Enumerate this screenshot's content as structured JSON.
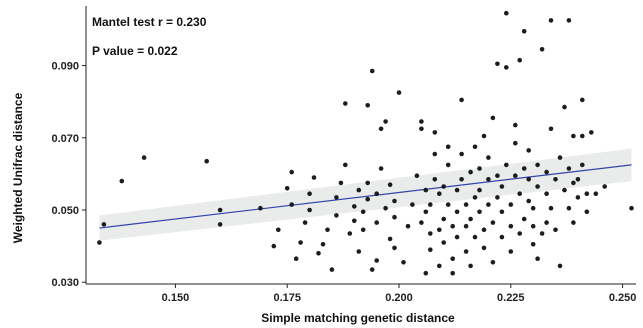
{
  "chart_data": {
    "type": "scatter",
    "xlabel": "Simple matching genetic distance",
    "ylabel": "Weighted Unifrac distance",
    "xlim": [
      0.13,
      0.253
    ],
    "ylim": [
      0.0295,
      0.1065
    ],
    "x_ticks": [
      0.15,
      0.175,
      0.2,
      0.225,
      0.25
    ],
    "x_tick_labels": [
      "0.150",
      "0.175",
      "0.200",
      "0.225",
      "0.250"
    ],
    "y_ticks": [
      0.03,
      0.05,
      0.07,
      0.09
    ],
    "y_tick_labels": [
      "0.030",
      "0.050",
      "0.070",
      "0.090"
    ],
    "grid": false,
    "annotations": [
      "Mantel test r = 0.230",
      "P value = 0.022"
    ],
    "regression": {
      "x": [
        0.133,
        0.252
      ],
      "y": [
        0.045,
        0.0625
      ],
      "ci_lower": [
        0.0415,
        0.058
      ],
      "ci_upper": [
        0.0485,
        0.067
      ],
      "line_color": "#3344aa",
      "band_color": "#e9ecea"
    },
    "point_color": "#111111",
    "points": [
      [
        0.133,
        0.041
      ],
      [
        0.134,
        0.046
      ],
      [
        0.138,
        0.058
      ],
      [
        0.143,
        0.0645
      ],
      [
        0.157,
        0.0635
      ],
      [
        0.16,
        0.046
      ],
      [
        0.16,
        0.05
      ],
      [
        0.169,
        0.0505
      ],
      [
        0.172,
        0.04
      ],
      [
        0.173,
        0.0445
      ],
      [
        0.175,
        0.056
      ],
      [
        0.176,
        0.0515
      ],
      [
        0.176,
        0.0605
      ],
      [
        0.177,
        0.0365
      ],
      [
        0.178,
        0.041
      ],
      [
        0.179,
        0.0465
      ],
      [
        0.18,
        0.05
      ],
      [
        0.18,
        0.0545
      ],
      [
        0.181,
        0.059
      ],
      [
        0.182,
        0.038
      ],
      [
        0.183,
        0.0405
      ],
      [
        0.184,
        0.0445
      ],
      [
        0.185,
        0.0335
      ],
      [
        0.186,
        0.0485
      ],
      [
        0.186,
        0.0535
      ],
      [
        0.187,
        0.0575
      ],
      [
        0.188,
        0.0625
      ],
      [
        0.188,
        0.0795
      ],
      [
        0.189,
        0.0435
      ],
      [
        0.19,
        0.047
      ],
      [
        0.19,
        0.051
      ],
      [
        0.191,
        0.0555
      ],
      [
        0.191,
        0.0385
      ],
      [
        0.192,
        0.0445
      ],
      [
        0.192,
        0.0495
      ],
      [
        0.193,
        0.053
      ],
      [
        0.193,
        0.0575
      ],
      [
        0.193,
        0.079
      ],
      [
        0.194,
        0.0885
      ],
      [
        0.194,
        0.0335
      ],
      [
        0.195,
        0.036
      ],
      [
        0.195,
        0.0465
      ],
      [
        0.195,
        0.0545
      ],
      [
        0.196,
        0.0615
      ],
      [
        0.196,
        0.0725
      ],
      [
        0.197,
        0.0745
      ],
      [
        0.197,
        0.0505
      ],
      [
        0.198,
        0.042
      ],
      [
        0.198,
        0.057
      ],
      [
        0.199,
        0.0395
      ],
      [
        0.199,
        0.048
      ],
      [
        0.199,
        0.0525
      ],
      [
        0.2,
        0.0825
      ],
      [
        0.201,
        0.0355
      ],
      [
        0.202,
        0.0455
      ],
      [
        0.203,
        0.0515
      ],
      [
        0.204,
        0.0595
      ],
      [
        0.205,
        0.0745
      ],
      [
        0.205,
        0.0725
      ],
      [
        0.205,
        0.0465
      ],
      [
        0.206,
        0.0495
      ],
      [
        0.206,
        0.0555
      ],
      [
        0.206,
        0.0325
      ],
      [
        0.207,
        0.039
      ],
      [
        0.207,
        0.0435
      ],
      [
        0.207,
        0.0515
      ],
      [
        0.208,
        0.0585
      ],
      [
        0.208,
        0.0655
      ],
      [
        0.208,
        0.0715
      ],
      [
        0.209,
        0.0445
      ],
      [
        0.209,
        0.0545
      ],
      [
        0.209,
        0.0345
      ],
      [
        0.21,
        0.041
      ],
      [
        0.21,
        0.0475
      ],
      [
        0.21,
        0.0565
      ],
      [
        0.211,
        0.0625
      ],
      [
        0.211,
        0.0675
      ],
      [
        0.211,
        0.0515
      ],
      [
        0.212,
        0.0455
      ],
      [
        0.212,
        0.0365
      ],
      [
        0.212,
        0.0325
      ],
      [
        0.213,
        0.0425
      ],
      [
        0.213,
        0.0495
      ],
      [
        0.213,
        0.0555
      ],
      [
        0.214,
        0.0585
      ],
      [
        0.214,
        0.0655
      ],
      [
        0.214,
        0.0805
      ],
      [
        0.215,
        0.0455
      ],
      [
        0.215,
        0.0515
      ],
      [
        0.215,
        0.0385
      ],
      [
        0.216,
        0.0605
      ],
      [
        0.216,
        0.0345
      ],
      [
        0.216,
        0.0475
      ],
      [
        0.217,
        0.0535
      ],
      [
        0.217,
        0.0675
      ],
      [
        0.217,
        0.0425
      ],
      [
        0.218,
        0.0495
      ],
      [
        0.218,
        0.0555
      ],
      [
        0.218,
        0.0615
      ],
      [
        0.219,
        0.0705
      ],
      [
        0.219,
        0.0445
      ],
      [
        0.219,
        0.0395
      ],
      [
        0.22,
        0.0515
      ],
      [
        0.22,
        0.0585
      ],
      [
        0.22,
        0.0645
      ],
      [
        0.221,
        0.0755
      ],
      [
        0.221,
        0.0465
      ],
      [
        0.221,
        0.0355
      ],
      [
        0.222,
        0.0535
      ],
      [
        0.222,
        0.0595
      ],
      [
        0.222,
        0.0905
      ],
      [
        0.223,
        0.0425
      ],
      [
        0.223,
        0.0495
      ],
      [
        0.223,
        0.0565
      ],
      [
        0.224,
        0.0625
      ],
      [
        0.224,
        0.0895
      ],
      [
        0.224,
        0.1045
      ],
      [
        0.225,
        0.0455
      ],
      [
        0.225,
        0.0515
      ],
      [
        0.225,
        0.0385
      ],
      [
        0.226,
        0.0595
      ],
      [
        0.226,
        0.0685
      ],
      [
        0.226,
        0.0735
      ],
      [
        0.227,
        0.0435
      ],
      [
        0.227,
        0.0545
      ],
      [
        0.227,
        0.0915
      ],
      [
        0.228,
        0.0995
      ],
      [
        0.228,
        0.0615
      ],
      [
        0.228,
        0.0475
      ],
      [
        0.229,
        0.0525
      ],
      [
        0.229,
        0.0585
      ],
      [
        0.229,
        0.0665
      ],
      [
        0.23,
        0.0405
      ],
      [
        0.23,
        0.0455
      ],
      [
        0.23,
        0.0505
      ],
      [
        0.231,
        0.0565
      ],
      [
        0.231,
        0.0625
      ],
      [
        0.231,
        0.0365
      ],
      [
        0.232,
        0.0435
      ],
      [
        0.232,
        0.0945
      ],
      [
        0.233,
        0.0545
      ],
      [
        0.233,
        0.0605
      ],
      [
        0.233,
        0.0465
      ],
      [
        0.234,
        0.1025
      ],
      [
        0.234,
        0.0725
      ],
      [
        0.234,
        0.0505
      ],
      [
        0.235,
        0.0585
      ],
      [
        0.235,
        0.0445
      ],
      [
        0.236,
        0.0645
      ],
      [
        0.236,
        0.0345
      ],
      [
        0.237,
        0.0555
      ],
      [
        0.237,
        0.0785
      ],
      [
        0.238,
        0.0615
      ],
      [
        0.238,
        0.0505
      ],
      [
        0.238,
        0.1025
      ],
      [
        0.239,
        0.0575
      ],
      [
        0.239,
        0.0705
      ],
      [
        0.239,
        0.0465
      ],
      [
        0.24,
        0.0535
      ],
      [
        0.24,
        0.0585
      ],
      [
        0.241,
        0.0805
      ],
      [
        0.241,
        0.0625
      ],
      [
        0.241,
        0.0705
      ],
      [
        0.242,
        0.0545
      ],
      [
        0.242,
        0.0495
      ],
      [
        0.243,
        0.0715
      ],
      [
        0.244,
        0.0545
      ],
      [
        0.246,
        0.0565
      ],
      [
        0.252,
        0.0505
      ]
    ]
  }
}
